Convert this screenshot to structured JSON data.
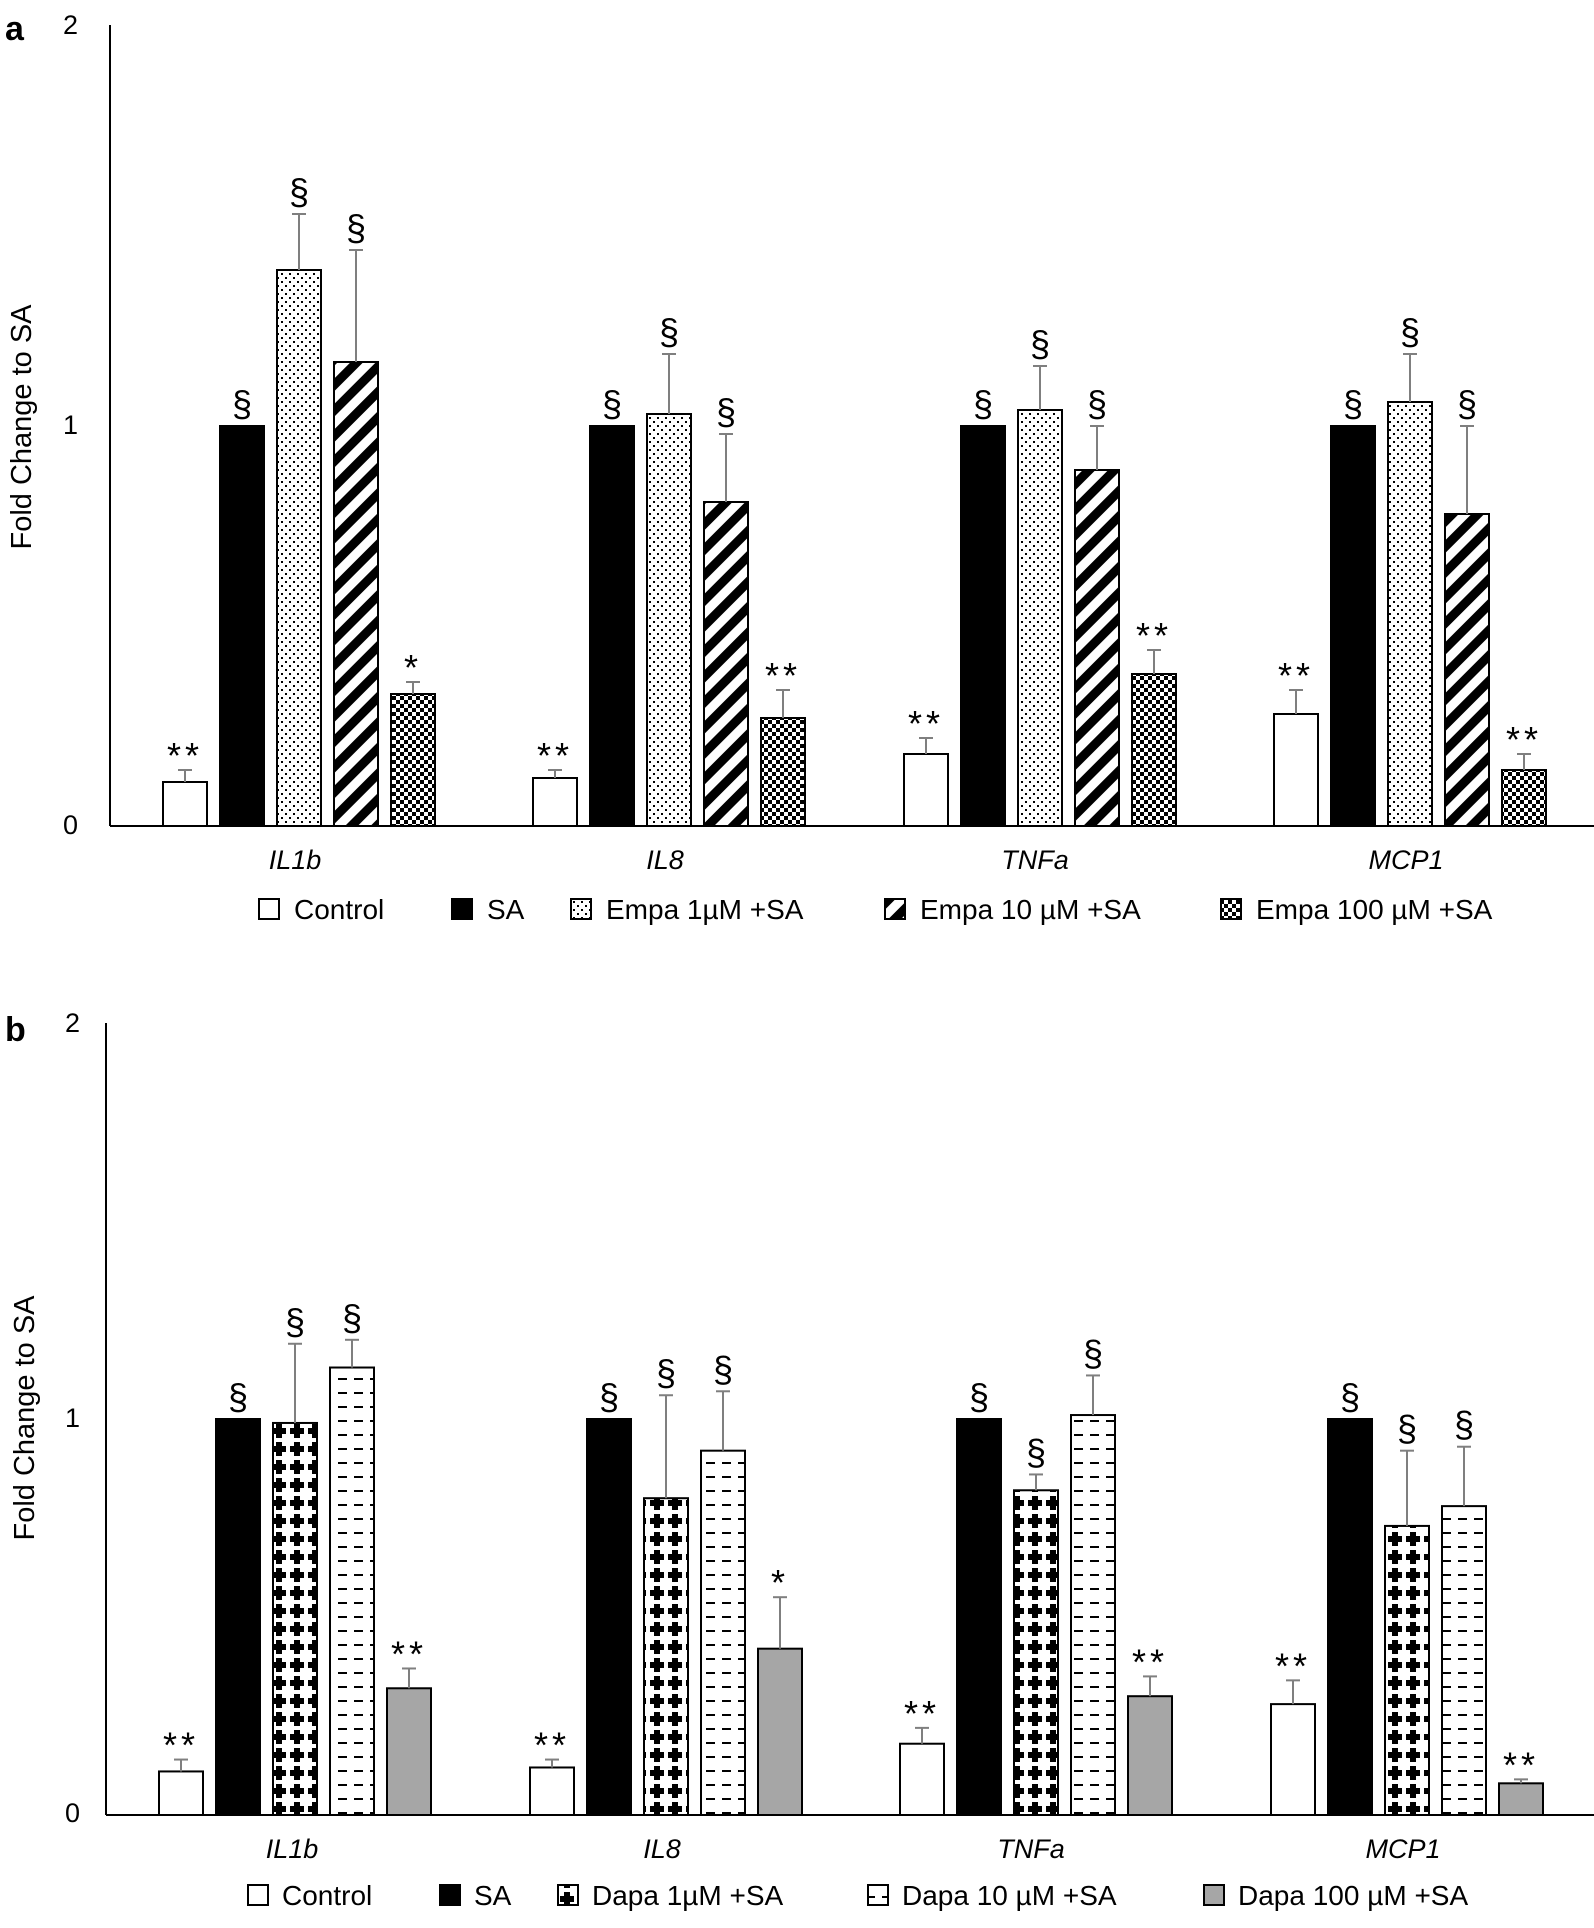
{
  "chart_data": [
    {
      "type": "bar",
      "panel": "a",
      "title": "",
      "xlabel": "",
      "ylabel": "Fold Change to SA",
      "ylim": [
        0,
        2
      ],
      "yticks": [
        "0",
        "1",
        "2"
      ],
      "grid": false,
      "legend_position": "bottom",
      "categories": [
        "IL1b",
        "IL8",
        "TNFa",
        "MCP1"
      ],
      "series": [
        {
          "name": "Control",
          "pattern": "white",
          "values": [
            0.11,
            0.12,
            0.18,
            0.28
          ],
          "errors": [
            0.03,
            0.02,
            0.04,
            0.06
          ],
          "sig": [
            "**",
            "**",
            "**",
            "**"
          ]
        },
        {
          "name": "SA",
          "pattern": "black",
          "values": [
            1.0,
            1.0,
            1.0,
            1.0
          ],
          "errors": [
            0,
            0,
            0,
            0
          ],
          "sig": [
            "§",
            "§",
            "§",
            "§"
          ]
        },
        {
          "name": "Empa 1µM +SA",
          "pattern": "dots",
          "values": [
            1.39,
            1.03,
            1.04,
            1.06
          ],
          "errors": [
            0.14,
            0.15,
            0.11,
            0.12
          ],
          "sig": [
            "§",
            "§",
            "§",
            "§"
          ]
        },
        {
          "name": "Empa 10 µM +SA",
          "pattern": "stripes",
          "values": [
            1.16,
            0.81,
            0.89,
            0.78
          ],
          "errors": [
            0.28,
            0.17,
            0.11,
            0.22
          ],
          "sig": [
            "§",
            "§",
            "§",
            "§"
          ]
        },
        {
          "name": "Empa 100 µM +SA",
          "pattern": "checker",
          "values": [
            0.33,
            0.27,
            0.38,
            0.14
          ],
          "errors": [
            0.03,
            0.07,
            0.06,
            0.04
          ],
          "sig": [
            "*",
            "**",
            "**",
            "**"
          ]
        }
      ]
    },
    {
      "type": "bar",
      "panel": "b",
      "title": "",
      "xlabel": "",
      "ylabel": "Fold Change to SA",
      "ylim": [
        0,
        2
      ],
      "yticks": [
        "0",
        "1",
        "2"
      ],
      "grid": false,
      "legend_position": "bottom",
      "categories": [
        "IL1b",
        "IL8",
        "TNFa",
        "MCP1"
      ],
      "series": [
        {
          "name": "Control",
          "pattern": "white",
          "values": [
            0.11,
            0.12,
            0.18,
            0.28
          ],
          "errors": [
            0.03,
            0.02,
            0.04,
            0.06
          ],
          "sig": [
            "**",
            "**",
            "**",
            "**"
          ]
        },
        {
          "name": "SA",
          "pattern": "black",
          "values": [
            1.0,
            1.0,
            1.0,
            1.0
          ],
          "errors": [
            0,
            0,
            0,
            0
          ],
          "sig": [
            "§",
            "§",
            "§",
            "§"
          ]
        },
        {
          "name": "Dapa 1µM +SA",
          "pattern": "crosses",
          "values": [
            0.99,
            0.8,
            0.82,
            0.73
          ],
          "errors": [
            0.2,
            0.26,
            0.04,
            0.19
          ],
          "sig": [
            "§",
            "§",
            "§",
            "§"
          ]
        },
        {
          "name": "Dapa  10 µM +SA",
          "pattern": "dashes",
          "values": [
            1.13,
            0.92,
            1.01,
            0.78
          ],
          "errors": [
            0.07,
            0.15,
            0.1,
            0.15
          ],
          "sig": [
            "§",
            "§",
            "§",
            "§"
          ]
        },
        {
          "name": "Dapa  100 µM +SA",
          "pattern": "gray",
          "values": [
            0.32,
            0.42,
            0.3,
            0.08
          ],
          "errors": [
            0.05,
            0.13,
            0.05,
            0.01
          ],
          "sig": [
            "**",
            "*",
            "**",
            "**"
          ]
        }
      ]
    }
  ],
  "panel_labels": [
    "a",
    "b"
  ],
  "colors": {
    "bar_outline": "#000000",
    "error_bar": "#7f7f7f",
    "gray_fill": "#a6a6a6",
    "axis": "#000000"
  }
}
